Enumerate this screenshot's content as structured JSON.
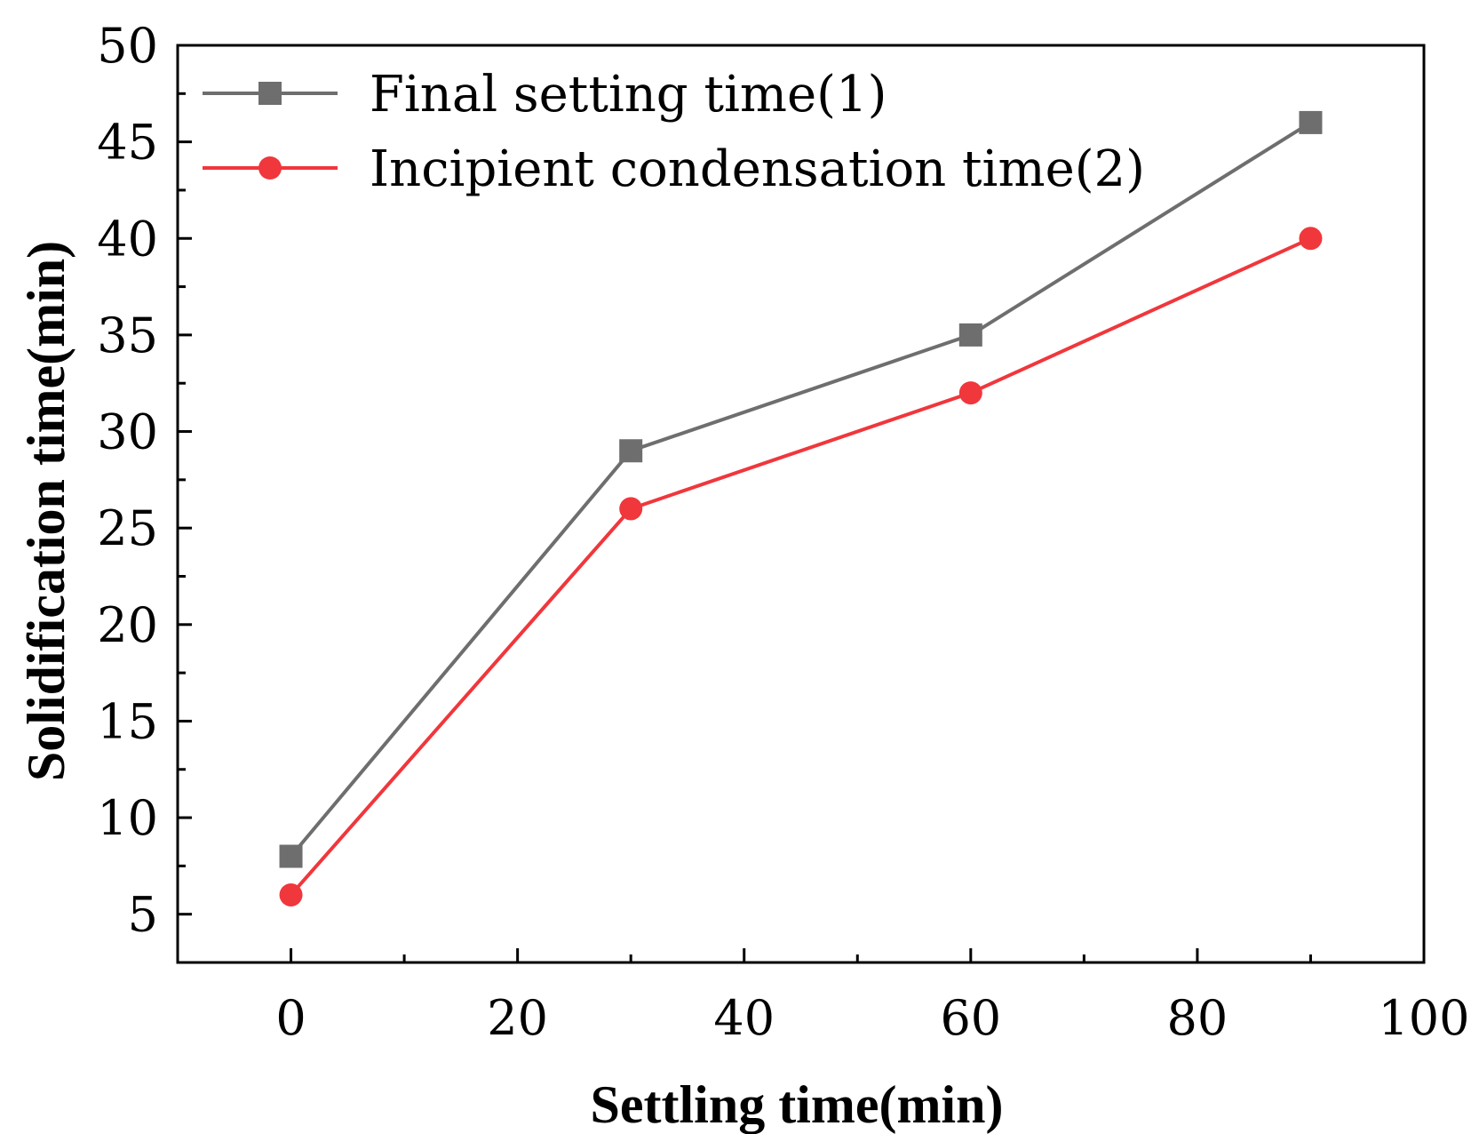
{
  "chart_data": {
    "type": "line",
    "title": "",
    "xlabel": "Settling time(min)",
    "ylabel": "Solidification time(min)",
    "xlim": [
      -10,
      100
    ],
    "ylim": [
      2.5,
      50
    ],
    "xticks": [
      0,
      20,
      40,
      60,
      80,
      100
    ],
    "xtick_labels": [
      "0",
      "20",
      "40",
      "60",
      "80",
      "100"
    ],
    "yticks": [
      5,
      10,
      15,
      20,
      25,
      30,
      35,
      40,
      45,
      50
    ],
    "ytick_labels": [
      "5",
      "10",
      "15",
      "20",
      "25",
      "30",
      "35",
      "40",
      "45",
      "50"
    ],
    "grid": false,
    "legend_position": "top-left",
    "series": [
      {
        "name": "Final setting time(1)",
        "color": "#6e6e6e",
        "marker": "square",
        "x": [
          0,
          30,
          60,
          90
        ],
        "values": [
          8,
          29,
          35,
          46
        ]
      },
      {
        "name": "Incipient condensation time(2)",
        "color": "#f0373c",
        "marker": "circle",
        "x": [
          0,
          30,
          60,
          90
        ],
        "values": [
          6,
          26,
          32,
          40
        ]
      }
    ]
  }
}
